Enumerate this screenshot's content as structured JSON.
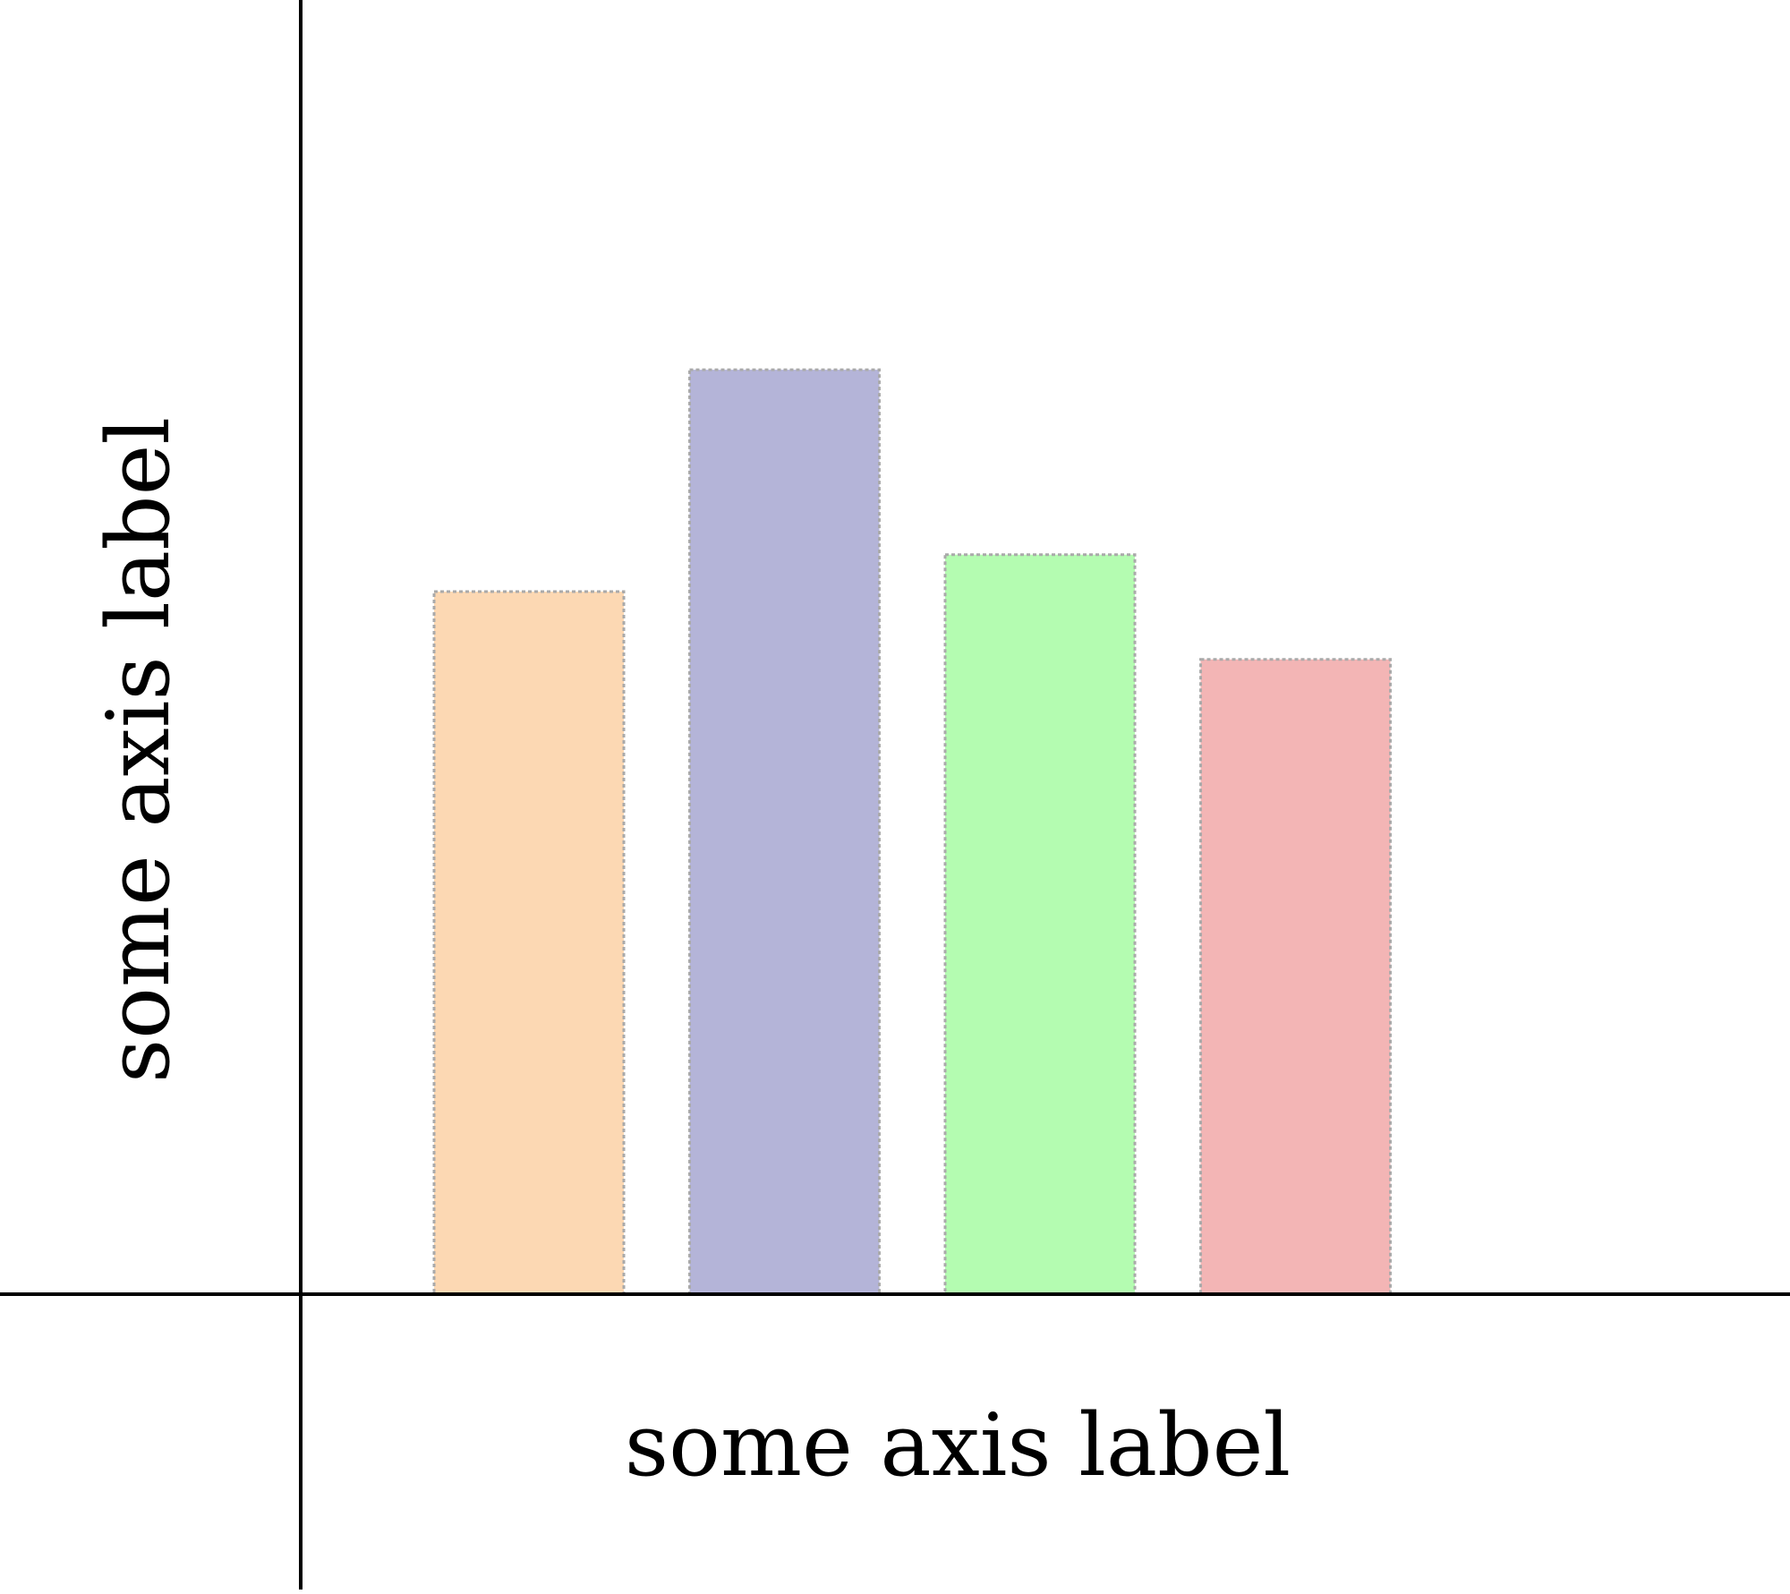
{
  "chart_data": {
    "type": "bar",
    "categories": [
      "",
      "",
      "",
      ""
    ],
    "values": [
      5.7,
      7.5,
      6.0,
      5.15
    ],
    "ylim": [
      0,
      10.5
    ],
    "xlabel": "some axis label",
    "ylabel": "some axis label",
    "grid": false,
    "colors": {
      "bars": [
        "#fcd8b3",
        "#b4b4d8",
        "#b4fcb1",
        "#f3b5b5"
      ],
      "bar_border": "#aaaaaa",
      "axis": "#000000",
      "background": "#ffffff"
    }
  }
}
